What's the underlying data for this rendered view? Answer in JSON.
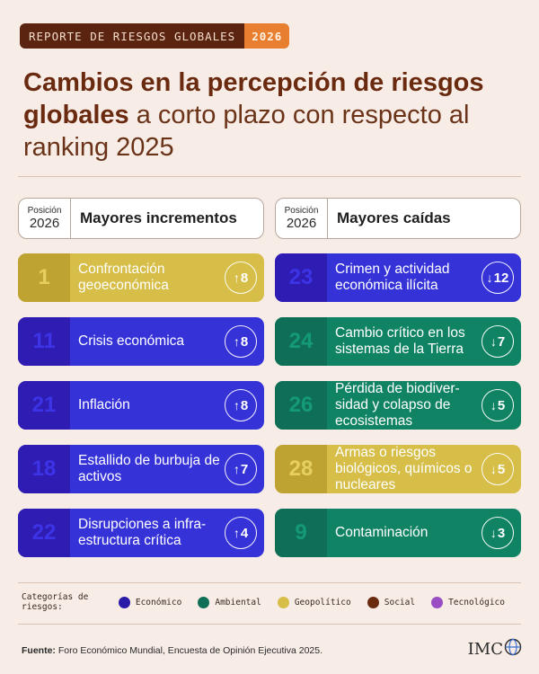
{
  "badge": {
    "text": "REPORTE DE RIESGOS GLOBALES",
    "year": "2026"
  },
  "title": {
    "bold": "Cambios en la percepción de riesgos globales",
    "regular": " a corto plazo con respecto al ranking 2025"
  },
  "columns": {
    "left": {
      "pos_label": "Posición",
      "pos_year": "2026",
      "title": "Mayores incrementos"
    },
    "right": {
      "pos_label": "Posición",
      "pos_year": "2026",
      "title": "Mayores caídas"
    }
  },
  "increases": [
    {
      "rank": "1",
      "label": "Confrontación geoeconómica",
      "arrow": "↑",
      "change": "8",
      "category": "Geopolítico"
    },
    {
      "rank": "11",
      "label": "Crisis económica",
      "arrow": "↑",
      "change": "8",
      "category": "Económico"
    },
    {
      "rank": "21",
      "label": "Inflación",
      "arrow": "↑",
      "change": "8",
      "category": "Económico"
    },
    {
      "rank": "18",
      "label": "Estallido de burbuja de activos",
      "arrow": "↑",
      "change": "7",
      "category": "Económico"
    },
    {
      "rank": "22",
      "label": "Disrupciones a infra-estructura crítica",
      "arrow": "↑",
      "change": "4",
      "category": "Económico"
    }
  ],
  "decreases": [
    {
      "rank": "23",
      "label": "Crimen y actividad económica ilícita",
      "arrow": "↓",
      "change": "12",
      "category": "Económico"
    },
    {
      "rank": "24",
      "label": "Cambio crítico en los sistemas de la Tierra",
      "arrow": "↓",
      "change": "7",
      "category": "Ambiental"
    },
    {
      "rank": "26",
      "label": "Pérdida de biodiver-sidad y colapso de ecosistemas",
      "arrow": "↓",
      "change": "5",
      "category": "Ambiental"
    },
    {
      "rank": "28",
      "label": "Armas o riesgos biológicos, químicos o nucleares",
      "arrow": "↓",
      "change": "5",
      "category": "Geopolítico"
    },
    {
      "rank": "9",
      "label": "Contaminación",
      "arrow": "↓",
      "change": "3",
      "category": "Ambiental"
    }
  ],
  "legend": {
    "title": "Categorías de riesgos:",
    "items": [
      {
        "label": "Económico",
        "color": "#2a1aa8"
      },
      {
        "label": "Ambiental",
        "color": "#0f6f56"
      },
      {
        "label": "Geopolítico",
        "color": "#d6be49"
      },
      {
        "label": "Social",
        "color": "#6a2a10"
      },
      {
        "label": "Tecnológico",
        "color": "#9a4ec4"
      }
    ]
  },
  "footer": {
    "label": "Fuente:",
    "text": " Foro Económico Mundial, Encuesta de Opinión Ejecutiva 2025."
  },
  "logo": {
    "text": "IMC",
    "icon": "globe-icon"
  }
}
